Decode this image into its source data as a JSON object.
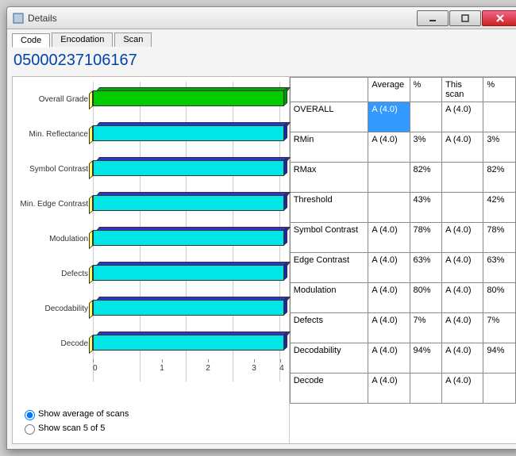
{
  "window": {
    "title": "Details"
  },
  "tabs": [
    "Code",
    "Encodation",
    "Scan"
  ],
  "active_tab": 0,
  "code_value": "05000237106167",
  "chart": {
    "type": "bar",
    "orientation": "horizontal",
    "x_ticks": [
      0,
      1,
      2,
      3,
      4
    ],
    "x_max": 4,
    "bars": [
      {
        "label": "Overall Grade",
        "value": 4.0,
        "front_color": "#00cc00",
        "top_color": "#00aa00",
        "side_color": "#009900"
      },
      {
        "label": "Min. Reflectance",
        "value": 4.0,
        "front_color": "#00e5e5",
        "top_color": "#3333cc",
        "side_color": "#2222aa"
      },
      {
        "label": "Symbol Contrast",
        "value": 4.0,
        "front_color": "#00e5e5",
        "top_color": "#3333cc",
        "side_color": "#2222aa"
      },
      {
        "label": "Min. Edge Contrast",
        "value": 4.0,
        "front_color": "#00e5e5",
        "top_color": "#3333cc",
        "side_color": "#2222aa"
      },
      {
        "label": "Modulation",
        "value": 4.0,
        "front_color": "#00e5e5",
        "top_color": "#3333cc",
        "side_color": "#2222aa"
      },
      {
        "label": "Defects",
        "value": 4.0,
        "front_color": "#00e5e5",
        "top_color": "#3333cc",
        "side_color": "#2222aa"
      },
      {
        "label": "Decodability",
        "value": 4.0,
        "front_color": "#00e5e5",
        "top_color": "#3333cc",
        "side_color": "#2222aa"
      },
      {
        "label": "Decode",
        "value": 4.0,
        "front_color": "#00e5e5",
        "top_color": "#3333cc",
        "side_color": "#2222aa"
      }
    ],
    "left_cap_color": "#ffff66",
    "grid_color": "#cccccc"
  },
  "table": {
    "headers": [
      "",
      "Average",
      "%",
      "This scan",
      "%"
    ],
    "rows": [
      {
        "label": "OVERALL",
        "avg": "A (4.0)",
        "avg_pct": "",
        "scan": "A (4.0)",
        "scan_pct": "",
        "highlight": "avg"
      },
      {
        "label": "RMin",
        "avg": "A (4.0)",
        "avg_pct": "3%",
        "scan": "A (4.0)",
        "scan_pct": "3%"
      },
      {
        "label": "RMax",
        "avg": "",
        "avg_pct": "82%",
        "scan": "",
        "scan_pct": "82%"
      },
      {
        "label": "Threshold",
        "avg": "",
        "avg_pct": "43%",
        "scan": "",
        "scan_pct": "42%"
      },
      {
        "label": "Symbol Contrast",
        "avg": "A (4.0)",
        "avg_pct": "78%",
        "scan": "A (4.0)",
        "scan_pct": "78%"
      },
      {
        "label": "Edge Contrast",
        "avg": "A (4.0)",
        "avg_pct": "63%",
        "scan": "A (4.0)",
        "scan_pct": "63%"
      },
      {
        "label": "Modulation",
        "avg": "A (4.0)",
        "avg_pct": "80%",
        "scan": "A (4.0)",
        "scan_pct": "80%"
      },
      {
        "label": "Defects",
        "avg": "A (4.0)",
        "avg_pct": "7%",
        "scan": "A (4.0)",
        "scan_pct": "7%"
      },
      {
        "label": "Decodability",
        "avg": "A (4.0)",
        "avg_pct": "94%",
        "scan": "A (4.0)",
        "scan_pct": "94%"
      },
      {
        "label": "Decode",
        "avg": "A (4.0)",
        "avg_pct": "",
        "scan": "A (4.0)",
        "scan_pct": ""
      }
    ]
  },
  "radios": {
    "selected": 0,
    "options": [
      "Show average of scans",
      "Show scan 5 of 5"
    ]
  }
}
